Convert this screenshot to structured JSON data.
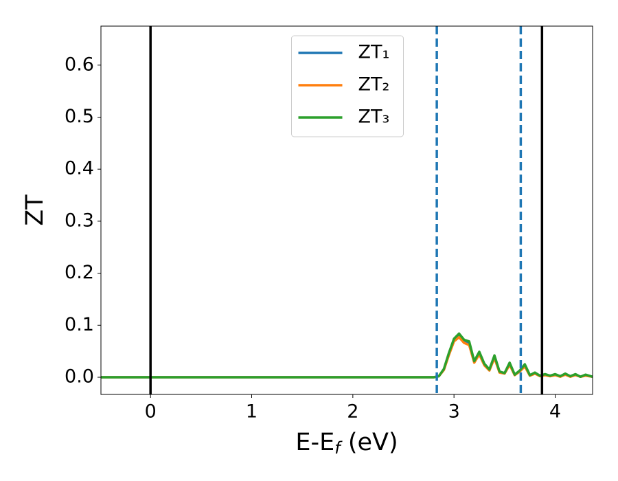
{
  "chart_data": {
    "type": "line",
    "xlabel": [
      "E-E",
      "f",
      " (eV)"
    ],
    "ylabel": "ZT",
    "x": [
      -0.49,
      2.8,
      2.85,
      2.9,
      2.95,
      3.0,
      3.05,
      3.1,
      3.15,
      3.2,
      3.25,
      3.3,
      3.35,
      3.4,
      3.45,
      3.5,
      3.55,
      3.6,
      3.65,
      3.7,
      3.75,
      3.8,
      3.85,
      3.9,
      3.95,
      4.0,
      4.05,
      4.1,
      4.15,
      4.2,
      4.25,
      4.3,
      4.37
    ],
    "series": [
      {
        "name": "ZT₁",
        "color": "#1f77b4",
        "values": [
          0,
          0,
          0.002,
          0.015,
          0.045,
          0.072,
          0.082,
          0.07,
          0.067,
          0.03,
          0.047,
          0.025,
          0.015,
          0.04,
          0.01,
          0.008,
          0.026,
          0.005,
          0.012,
          0.023,
          0.004,
          0.008,
          0.003,
          0.005,
          0.003,
          0.005,
          0.002,
          0.006,
          0.002,
          0.005,
          0.001,
          0.004,
          0.001
        ]
      },
      {
        "name": "ZT₂",
        "color": "#ff7f0e",
        "values": [
          0,
          0,
          0.002,
          0.014,
          0.043,
          0.069,
          0.077,
          0.066,
          0.062,
          0.028,
          0.044,
          0.023,
          0.013,
          0.037,
          0.009,
          0.007,
          0.024,
          0.004,
          0.011,
          0.021,
          0.003,
          0.007,
          0.002,
          0.004,
          0.002,
          0.004,
          0.001,
          0.005,
          0.001,
          0.004,
          0.001,
          0.003,
          0.001
        ]
      },
      {
        "name": "ZT₃",
        "color": "#2ca02c",
        "values": [
          0,
          0,
          0.002,
          0.016,
          0.047,
          0.074,
          0.084,
          0.072,
          0.069,
          0.031,
          0.049,
          0.026,
          0.015,
          0.042,
          0.011,
          0.008,
          0.028,
          0.005,
          0.013,
          0.025,
          0.004,
          0.009,
          0.003,
          0.006,
          0.003,
          0.006,
          0.002,
          0.007,
          0.002,
          0.006,
          0.001,
          0.005,
          0.001
        ]
      }
    ],
    "vlines": [
      {
        "value": 0,
        "color": "#000000",
        "dashed": false
      },
      {
        "value": 2.83,
        "color": "#1f77b4",
        "dashed": true
      },
      {
        "value": 3.66,
        "color": "#1f77b4",
        "dashed": true
      },
      {
        "value": 3.87,
        "color": "#000000",
        "dashed": false
      }
    ],
    "xlim": [
      -0.49,
      4.37
    ],
    "ylim": [
      -0.033,
      0.675
    ],
    "xticks": [
      0,
      1,
      2,
      3,
      4
    ],
    "yticks": [
      {
        "value": 0,
        "label": "0.0"
      },
      {
        "value": 0.1,
        "label": "0.1"
      },
      {
        "value": 0.2,
        "label": "0.2"
      },
      {
        "value": 0.3,
        "label": "0.3"
      },
      {
        "value": 0.4,
        "label": "0.4"
      },
      {
        "value": 0.5,
        "label": "0.5"
      },
      {
        "value": 0.6,
        "label": "0.6"
      }
    ],
    "legend": "upper center",
    "grid": false
  }
}
